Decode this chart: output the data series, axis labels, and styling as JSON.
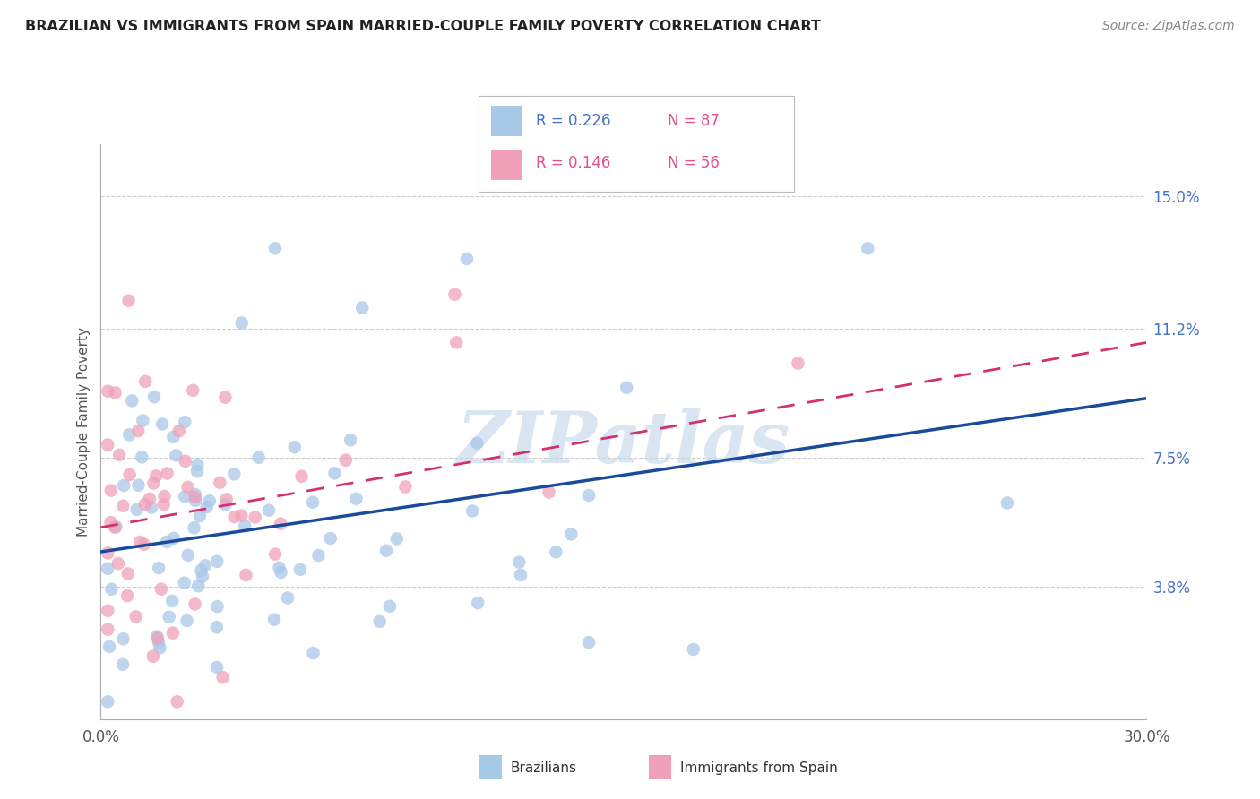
{
  "title": "BRAZILIAN VS IMMIGRANTS FROM SPAIN MARRIED-COUPLE FAMILY POVERTY CORRELATION CHART",
  "source": "Source: ZipAtlas.com",
  "ylabel": "Married-Couple Family Poverty",
  "xmin": 0.0,
  "xmax": 30.0,
  "ymin": 0.0,
  "ymax": 16.5,
  "yticks": [
    3.8,
    7.5,
    11.2,
    15.0
  ],
  "ytick_labels": [
    "3.8%",
    "7.5%",
    "11.2%",
    "15.0%"
  ],
  "xtick_labels": [
    "0.0%",
    "30.0%"
  ],
  "r_brazil": 0.226,
  "n_brazil": 87,
  "r_spain": 0.146,
  "n_spain": 56,
  "color_brazil": "#A8C8E8",
  "color_spain": "#F0A0B8",
  "line_color_brazil": "#1A4A9C",
  "line_color_spain": "#D43070",
  "watermark": "ZIPatlas",
  "watermark_color": "#C0D4E8",
  "background_color": "#FFFFFF",
  "brazil_line_start_y": 4.8,
  "brazil_line_end_y": 9.2,
  "spain_line_start_y": 5.5,
  "spain_line_end_y": 10.8
}
